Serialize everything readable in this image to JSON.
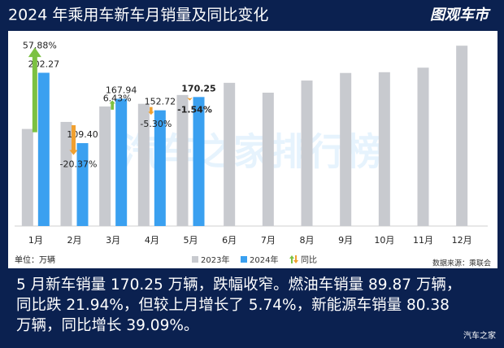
{
  "header": {
    "title": "2024 年乘用车新车月销量及同比变化",
    "logo": "图观车市"
  },
  "chart_data": {
    "type": "bar",
    "categories": [
      "1月",
      "2月",
      "3月",
      "4月",
      "5月",
      "6月",
      "7月",
      "8月",
      "9月",
      "10月",
      "11月",
      "12月"
    ],
    "ylim": [
      0,
      250
    ],
    "series": [
      {
        "name": "2023年",
        "color": "#c8cacf",
        "values": [
          128.1,
          137.4,
          157.8,
          161.3,
          172.9,
          189,
          176,
          192,
          202,
          203,
          209,
          238
        ]
      },
      {
        "name": "2024年",
        "color": "#3aa0f0",
        "values": [
          202.27,
          109.4,
          167.94,
          152.72,
          170.25,
          null,
          null,
          null,
          null,
          null,
          null,
          null
        ],
        "value_labels": [
          "202.27",
          "109.40",
          "167.94",
          "152.72",
          "170.25",
          null,
          null,
          null,
          null,
          null,
          null,
          null
        ]
      },
      {
        "name": "同比",
        "color": "#7cc142",
        "down_color": "#f0a030",
        "values": [
          57.88,
          -20.37,
          6.43,
          -5.3,
          -1.54,
          null,
          null,
          null,
          null,
          null,
          null,
          null
        ],
        "value_labels": [
          "57.88%",
          "-20.37%",
          "6.43%",
          "-5.30%",
          "-1.54%",
          null,
          null,
          null,
          null,
          null,
          null,
          null
        ]
      }
    ],
    "unit_note": "单位：万辆",
    "source": "数据来源：乘联会",
    "watermark": "汽车之家排行榜"
  },
  "caption": {
    "lines": [
      "5 月新车销量 170.25 万辆，跌幅收窄。燃油车销量 89.87 万辆，",
      "同比跌 21.94%，但较上月增长了 5.74%，新能源车销量 80.38",
      "万辆，同比增长 39.09%。"
    ]
  },
  "footer_logo": "汽车之家"
}
